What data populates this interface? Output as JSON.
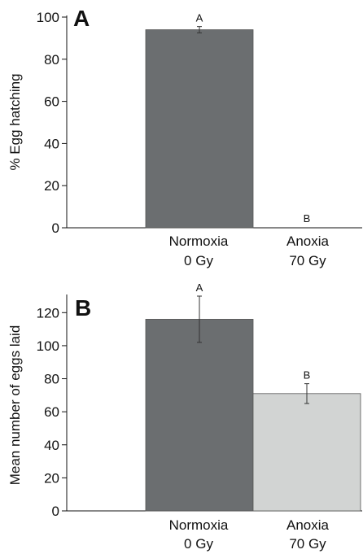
{
  "chart_data": [
    {
      "type": "bar",
      "panel_label": "A",
      "ylabel": "% Egg hatching",
      "ylim": [
        0,
        100
      ],
      "yticks": [
        0,
        20,
        40,
        60,
        80,
        100
      ],
      "categories": [
        {
          "line1": "Normoxia",
          "line2": "0 Gy"
        },
        {
          "line1": "Anoxia",
          "line2": "70 Gy"
        }
      ],
      "values": [
        94,
        0
      ],
      "errors": [
        1.5,
        0
      ],
      "significance": [
        "A",
        "B"
      ],
      "colors": [
        "#6b6e70",
        "#d2d4d3"
      ]
    },
    {
      "type": "bar",
      "panel_label": "B",
      "ylabel": "Mean number of eggs laid",
      "ylim": [
        0,
        130
      ],
      "yticks": [
        0,
        20,
        40,
        60,
        80,
        100,
        120
      ],
      "categories": [
        {
          "line1": "Normoxia",
          "line2": "0 Gy"
        },
        {
          "line1": "Anoxia",
          "line2": "70 Gy"
        }
      ],
      "values": [
        116,
        71
      ],
      "errors": [
        14,
        6
      ],
      "significance": [
        "A",
        "B"
      ],
      "colors": [
        "#6b6e70",
        "#d2d4d3"
      ]
    }
  ]
}
